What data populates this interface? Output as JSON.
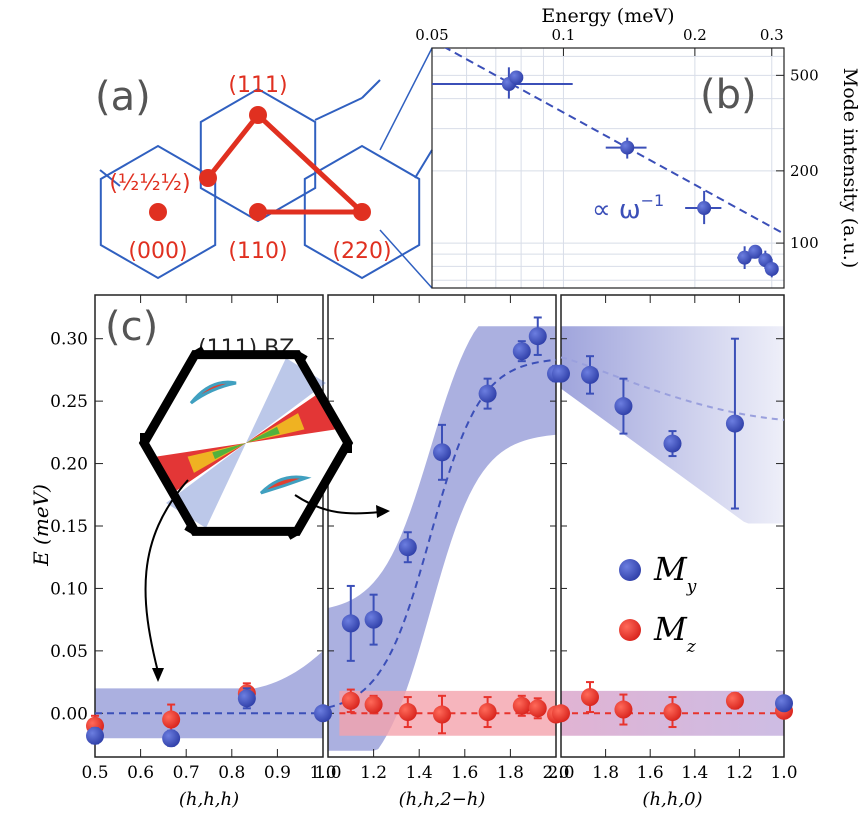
{
  "chart_data": [
    {
      "panel": "(a)",
      "type": "diagram",
      "points": [
        {
          "label": "(111)"
        },
        {
          "label": "(½½½)"
        },
        {
          "label": "(000)"
        },
        {
          "label": "(110)"
        },
        {
          "label": "(220)"
        }
      ]
    },
    {
      "panel": "(b)",
      "type": "scatter",
      "xlabel": "Energy (meV)",
      "ylabel": "Mode intensity (a.u.)",
      "xscale": "log",
      "yscale": "log",
      "xticks": [
        "0.05",
        "0.1",
        "0.2",
        "0.3"
      ],
      "yticks": [
        "500",
        "200",
        "100"
      ],
      "xlim": [
        0.05,
        0.32
      ],
      "ylim": [
        65,
        650
      ],
      "annotation": "∝ ω",
      "annotation_exp": "−1",
      "points": [
        {
          "x": 0.075,
          "y": 460,
          "xerr": [
            0.05,
            0.105
          ],
          "yerr": [
            400,
            540
          ]
        },
        {
          "x": 0.078,
          "y": 490
        },
        {
          "x": 0.14,
          "y": 250,
          "xerr": [
            0.125,
            0.155
          ],
          "yerr": [
            225,
            275
          ]
        },
        {
          "x": 0.21,
          "y": 140,
          "xerr": [
            0.19,
            0.23
          ],
          "yerr": [
            120,
            165
          ]
        },
        {
          "x": 0.26,
          "y": 87,
          "xerr": [
            0.25,
            0.275
          ],
          "yerr": [
            78,
            97
          ]
        },
        {
          "x": 0.275,
          "y": 92
        },
        {
          "x": 0.29,
          "y": 85,
          "xerr": [
            0.28,
            0.3
          ],
          "yerr": [
            78,
            93
          ]
        },
        {
          "x": 0.3,
          "y": 78,
          "xerr": [
            0.29,
            0.31
          ],
          "yerr": [
            72,
            86
          ]
        }
      ],
      "fit": {
        "type": "power",
        "exponent": -1
      }
    },
    {
      "panel": "(c)",
      "type": "scatter",
      "ylabel": "E (meV)",
      "ylim": [
        -0.035,
        0.335
      ],
      "yticks": [
        "0.00",
        "0.05",
        "0.10",
        "0.15",
        "0.20",
        "0.25",
        "0.30"
      ],
      "inset_label": "(111) BZ",
      "legend": [
        {
          "name": "M",
          "sub": "y",
          "color": "#3b4fb8"
        },
        {
          "name": "M",
          "sub": "z",
          "color": "#e8332c"
        }
      ],
      "legend_placement": "lower-right of third subpanel",
      "subpanels": [
        {
          "xlabel": "(h,h,h)",
          "xlim": [
            0.5,
            1.0
          ],
          "xticks": [
            "0.5",
            "0.6",
            "0.7",
            "0.8",
            "0.9",
            "1.0"
          ],
          "My": [
            {
              "x": 0.5,
              "y": -0.018,
              "err": 0.006
            },
            {
              "x": 0.667,
              "y": -0.02,
              "err": 0.006
            },
            {
              "x": 0.833,
              "y": 0.012,
              "err": 0.008
            },
            {
              "x": 1.0,
              "y": 0.0,
              "err": 0.0
            }
          ],
          "Mz": [
            {
              "x": 0.5,
              "y": -0.01,
              "err": 0.008
            },
            {
              "x": 0.667,
              "y": -0.005,
              "err": 0.012
            },
            {
              "x": 0.833,
              "y": 0.016,
              "err": 0.008
            }
          ]
        },
        {
          "xlabel": "(h,h,2−h)",
          "xlim": [
            1.0,
            2.0
          ],
          "xticks": [
            "1.0",
            "1.2",
            "1.4",
            "1.6",
            "1.8",
            "2.0"
          ],
          "My": [
            {
              "x": 1.1,
              "y": 0.072,
              "err": 0.03
            },
            {
              "x": 1.2,
              "y": 0.075,
              "err": 0.02
            },
            {
              "x": 1.35,
              "y": 0.133,
              "err": 0.012
            },
            {
              "x": 1.5,
              "y": 0.209,
              "err": 0.022
            },
            {
              "x": 1.7,
              "y": 0.256,
              "err": 0.012
            },
            {
              "x": 1.85,
              "y": 0.29,
              "err": 0.008
            },
            {
              "x": 1.92,
              "y": 0.302,
              "err": 0.015
            },
            {
              "x": 2.0,
              "y": 0.272,
              "err": 0.006
            }
          ],
          "Mz": [
            {
              "x": 1.1,
              "y": 0.01,
              "err": 0.009
            },
            {
              "x": 1.2,
              "y": 0.007,
              "err": 0.007
            },
            {
              "x": 1.35,
              "y": 0.001,
              "err": 0.012
            },
            {
              "x": 1.5,
              "y": -0.001,
              "err": 0.015
            },
            {
              "x": 1.7,
              "y": 0.001,
              "err": 0.012
            },
            {
              "x": 1.85,
              "y": 0.006,
              "err": 0.008
            },
            {
              "x": 1.92,
              "y": 0.004,
              "err": 0.008
            },
            {
              "x": 2.0,
              "y": -0.001,
              "err": 0.005
            }
          ]
        },
        {
          "xlabel": "(h,h,0)",
          "xlim": [
            2.0,
            1.0
          ],
          "xticks": [
            "2.0",
            "1.8",
            "1.6",
            "1.4",
            "1.2",
            "1.0"
          ],
          "My": [
            {
              "x": 2.0,
              "y": 0.272,
              "err": 0.005
            },
            {
              "x": 1.87,
              "y": 0.271,
              "err": 0.015
            },
            {
              "x": 1.72,
              "y": 0.246,
              "err": 0.022
            },
            {
              "x": 1.5,
              "y": 0.216,
              "err": 0.01
            },
            {
              "x": 1.22,
              "y": 0.232,
              "err": 0.068
            },
            {
              "x": 1.0,
              "y": 0.008,
              "err": 0.005
            }
          ],
          "Mz": [
            {
              "x": 2.0,
              "y": 0.0,
              "err": 0.004
            },
            {
              "x": 1.87,
              "y": 0.013,
              "err": 0.012
            },
            {
              "x": 1.72,
              "y": 0.003,
              "err": 0.012
            },
            {
              "x": 1.5,
              "y": 0.001,
              "err": 0.012
            },
            {
              "x": 1.22,
              "y": 0.01,
              "err": 0.006
            },
            {
              "x": 1.0,
              "y": 0.002,
              "err": 0.004
            }
          ]
        }
      ]
    }
  ],
  "colors": {
    "My": "#3b4fb8",
    "Mz": "#e8332c",
    "My_band": "#8f95d6",
    "Mz_band": "#f4a3ad",
    "hexagon": "#3060c0",
    "diagram_red": "#e03020",
    "panel_label": "#555555"
  }
}
